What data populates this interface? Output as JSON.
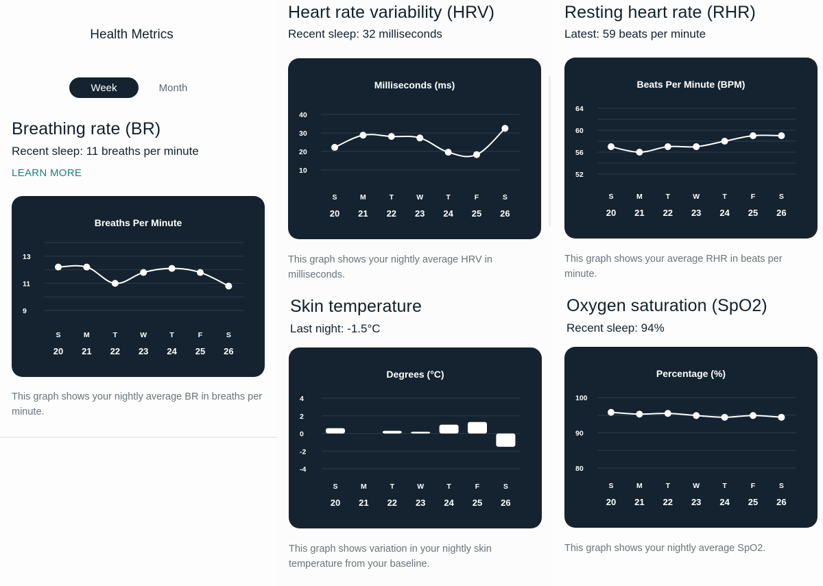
{
  "app": {
    "title": "Health Metrics",
    "period_toggle": {
      "options": [
        "Week",
        "Month"
      ],
      "selected": "Week"
    }
  },
  "colors": {
    "card_bg": "#14232f",
    "grid": "#2b3c48",
    "mark": "#ffffff",
    "accent_link": "#1f807c",
    "text_dark": "#12202c",
    "text_muted": "#6a737b"
  },
  "sections": {
    "br": {
      "title": "Breathing rate (BR)",
      "subtitle": "Recent sleep: 11 breaths per minute",
      "link": "LEARN MORE",
      "description": "This graph shows your nightly average BR in breaths per minute."
    },
    "hrv": {
      "title": "Heart rate variability (HRV)",
      "subtitle": "Recent sleep: 32 milliseconds",
      "description": "This graph shows your nightly average HRV in milliseconds."
    },
    "rhr": {
      "title": "Resting heart rate (RHR)",
      "subtitle": "Latest: 59 beats per minute",
      "description": "This graph shows your average RHR in beats per minute."
    },
    "skin": {
      "title": "Skin temperature",
      "subtitle": "Last night: -1.5°C",
      "description": "This graph shows variation in your nightly skin temperature from your baseline."
    },
    "spo2": {
      "title": "Oxygen saturation (SpO2)",
      "subtitle": "Recent sleep: 94%",
      "description": "This graph shows your nightly average SpO2."
    }
  },
  "chart_data": [
    {
      "id": "br",
      "type": "line",
      "title": "Breaths Per Minute",
      "categories": [
        "S",
        "M",
        "T",
        "W",
        "T",
        "F",
        "S"
      ],
      "dates": [
        "20",
        "21",
        "22",
        "23",
        "24",
        "25",
        "26"
      ],
      "values": [
        12.2,
        12.2,
        11.0,
        11.8,
        12.1,
        11.8,
        10.8
      ],
      "ylim": [
        9,
        14
      ],
      "gridlines": [
        14,
        13,
        12,
        11,
        10,
        9
      ],
      "ytick_labels": [
        "13",
        "11",
        "9"
      ],
      "yticks": [
        13,
        11,
        9
      ],
      "grid": true,
      "xlabel": "",
      "ylabel": ""
    },
    {
      "id": "hrv",
      "type": "line",
      "title": "Milliseconds (ms)",
      "categories": [
        "S",
        "M",
        "T",
        "W",
        "T",
        "F",
        "S"
      ],
      "dates": [
        "20",
        "21",
        "22",
        "23",
        "24",
        "25",
        "26"
      ],
      "values": [
        22.2,
        28.8,
        28.1,
        27.3,
        19.6,
        18.3,
        32.5
      ],
      "ylim": [
        10,
        40
      ],
      "gridlines": [
        40,
        30,
        20,
        10
      ],
      "ytick_labels": [
        "40",
        "30",
        "20",
        "10"
      ],
      "yticks": [
        40,
        30,
        20,
        10
      ],
      "grid": true,
      "xlabel": "",
      "ylabel": ""
    },
    {
      "id": "rhr",
      "type": "line",
      "title": "Beats Per Minute (BPM)",
      "categories": [
        "S",
        "M",
        "T",
        "W",
        "T",
        "F",
        "S"
      ],
      "dates": [
        "20",
        "21",
        "22",
        "23",
        "24",
        "25",
        "26"
      ],
      "values": [
        57,
        56,
        57,
        57,
        58,
        59,
        59
      ],
      "ylim": [
        52,
        64
      ],
      "gridlines": [
        64,
        62,
        60,
        58,
        56,
        54,
        52
      ],
      "ytick_labels": [
        "64",
        "60",
        "56",
        "52"
      ],
      "yticks": [
        64,
        60,
        56,
        52
      ],
      "grid": true,
      "xlabel": "",
      "ylabel": ""
    },
    {
      "id": "skin",
      "type": "bar",
      "title": "Degrees (°C)",
      "categories": [
        "S",
        "M",
        "T",
        "W",
        "T",
        "F",
        "S"
      ],
      "dates": [
        "20",
        "21",
        "22",
        "23",
        "24",
        "25",
        "26"
      ],
      "values": [
        0.6,
        0,
        0.3,
        0.2,
        1.0,
        1.3,
        -1.5
      ],
      "ylim": [
        -4,
        4
      ],
      "gridlines": [
        4,
        2,
        0,
        -2,
        -4
      ],
      "ytick_labels": [
        "4",
        "2",
        "0",
        "-2",
        "-4"
      ],
      "yticks": [
        4,
        2,
        0,
        -2,
        -4
      ],
      "grid": true,
      "xlabel": "",
      "ylabel": ""
    },
    {
      "id": "spo2",
      "type": "line",
      "title": "Percentage (%)",
      "categories": [
        "S",
        "M",
        "T",
        "W",
        "T",
        "F",
        "S"
      ],
      "dates": [
        "20",
        "21",
        "22",
        "23",
        "24",
        "25",
        "26"
      ],
      "values": [
        95.8,
        95.3,
        95.5,
        94.9,
        94.4,
        94.9,
        94.4
      ],
      "ylim": [
        80,
        100
      ],
      "gridlines": [
        100,
        95,
        90,
        85,
        80
      ],
      "ytick_labels": [
        "100",
        "90",
        "80"
      ],
      "yticks": [
        100,
        90,
        80
      ],
      "grid": true,
      "xlabel": "",
      "ylabel": ""
    }
  ]
}
